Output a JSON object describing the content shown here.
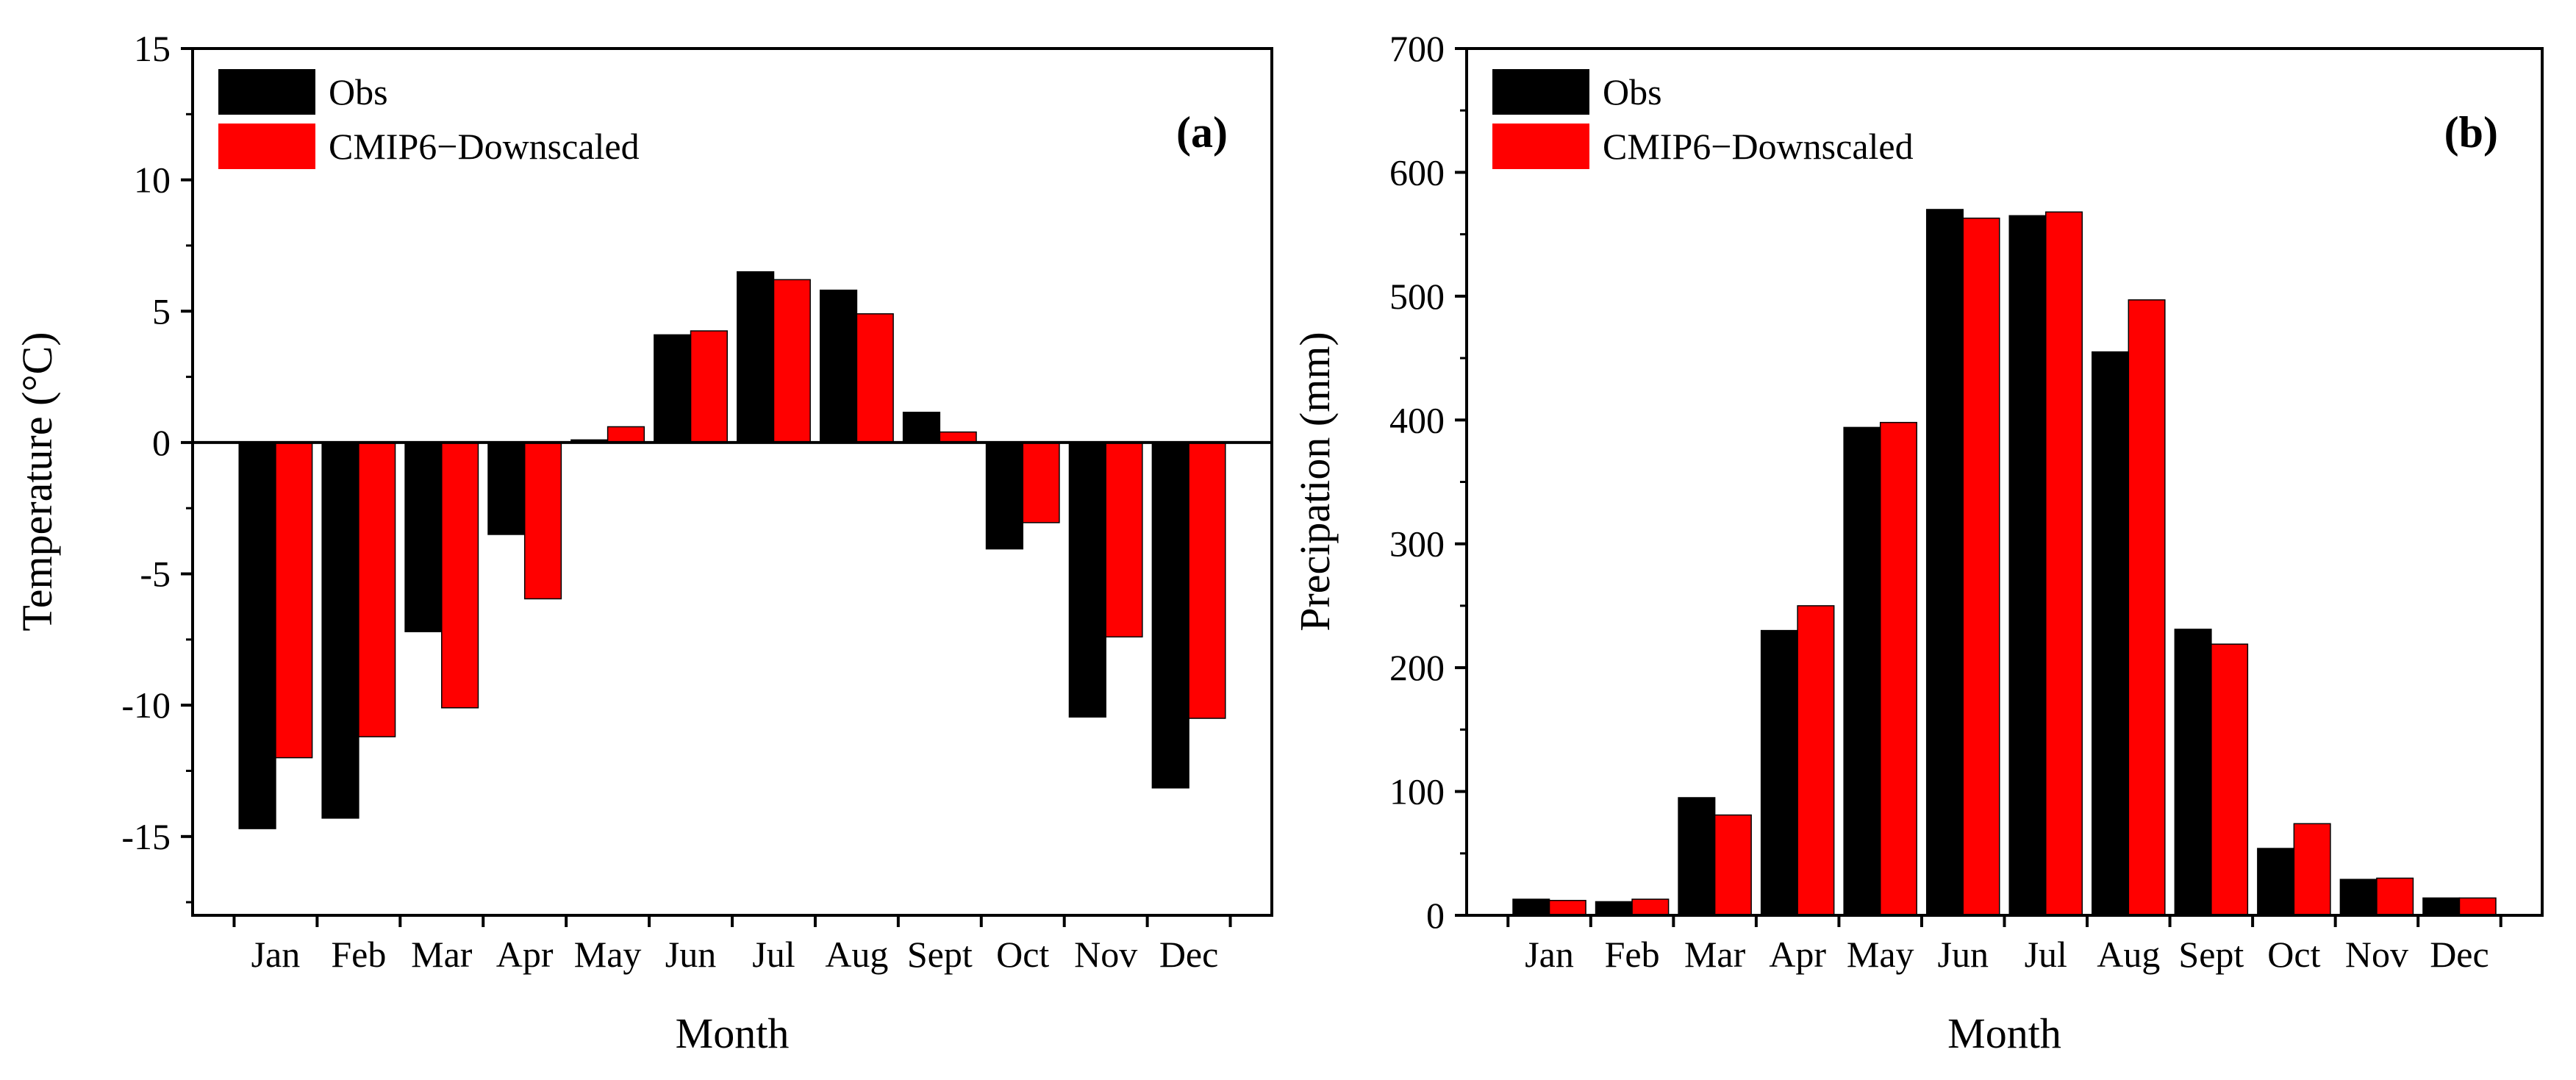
{
  "colors": {
    "obs": "#000000",
    "downscaled": "#ff0000",
    "axis": "#000000"
  },
  "chart_data": [
    {
      "type": "bar",
      "panel_label": "(a)",
      "categories": [
        "Jan",
        "Feb",
        "Mar",
        "Apr",
        "May",
        "Jun",
        "Jul",
        "Aug",
        "Sept",
        "Oct",
        "Nov",
        "Dec"
      ],
      "series": [
        {
          "name": "Obs",
          "values": [
            -14.7,
            -14.3,
            -7.2,
            -3.5,
            0.1,
            4.1,
            6.5,
            5.8,
            1.15,
            -4.05,
            -10.45,
            -13.15
          ]
        },
        {
          "name": "CMIP6−Downscaled",
          "values": [
            -12.0,
            -11.2,
            -10.1,
            -5.95,
            0.6,
            4.25,
            6.2,
            4.9,
            0.4,
            -3.05,
            -7.4,
            -10.5
          ]
        }
      ],
      "xlabel": "Month",
      "ylabel": "Temperature (°C)",
      "ylim": [
        -18,
        15
      ],
      "yticks": [
        15,
        10,
        5,
        0,
        -5,
        -10,
        -15
      ],
      "ytick_labels": [
        "15",
        "10",
        "5",
        "0",
        "-5",
        "-10",
        "-15"
      ],
      "grid": false,
      "zero_line": true,
      "legend_position": "top-left"
    },
    {
      "type": "bar",
      "panel_label": "(b)",
      "categories": [
        "Jan",
        "Feb",
        "Mar",
        "Apr",
        "May",
        "Jun",
        "Jul",
        "Aug",
        "Sept",
        "Oct",
        "Nov",
        "Dec"
      ],
      "series": [
        {
          "name": "Obs",
          "values": [
            13,
            11,
            95,
            230,
            394,
            570,
            565,
            455,
            231,
            54,
            29,
            14
          ]
        },
        {
          "name": "CMIP6−Downscaled",
          "values": [
            12,
            13,
            81,
            250,
            398,
            563,
            568,
            497,
            219,
            74,
            30,
            14
          ]
        }
      ],
      "xlabel": "Month",
      "ylabel": "Precipation (mm)",
      "ylim": [
        0,
        700
      ],
      "yticks": [
        0,
        100,
        200,
        300,
        400,
        500,
        600,
        700
      ],
      "ytick_labels": [
        "0",
        "100",
        "200",
        "300",
        "400",
        "500",
        "600",
        "700"
      ],
      "grid": false,
      "zero_line": false,
      "legend_position": "top-left"
    }
  ]
}
